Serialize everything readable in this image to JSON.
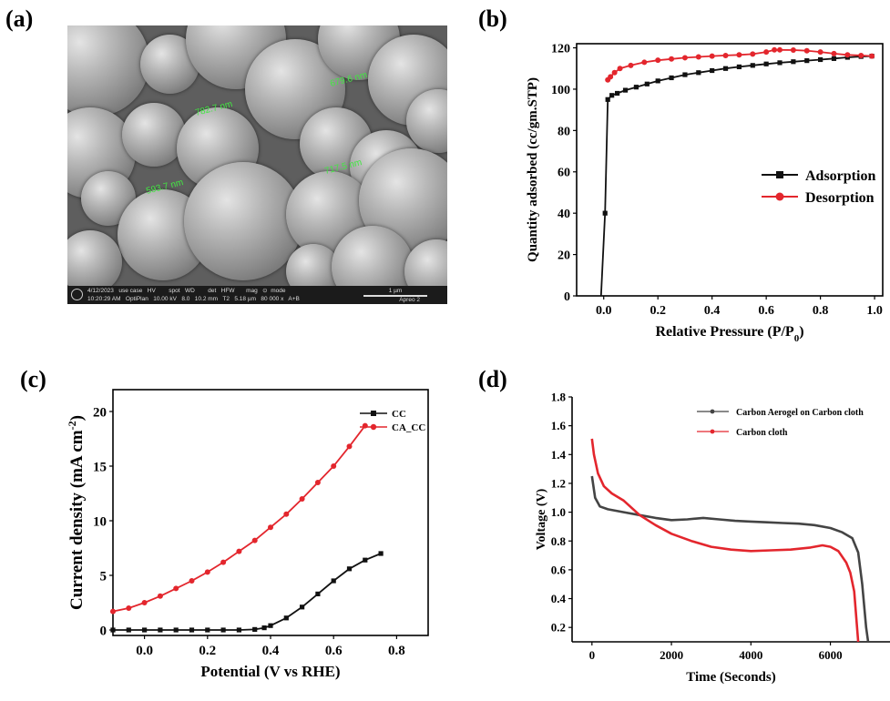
{
  "panels": {
    "a": "(a)",
    "b": "(b)",
    "c": "(c)",
    "d": "(d)"
  },
  "sem": {
    "measurements": [
      "782.7 nm",
      "679.6 nm",
      "593.7 nm",
      "717.5 nm"
    ],
    "databar": {
      "row1": "4/12/2023   use case   HV        spot   WD        det   HFW       mag   ⊙  mode",
      "row2": "10:20:29 AM   OptiPlan   10.00 kV   8.0   10.2 mm   T2   5.18 µm   80 000 x   A+B",
      "scale": "1 µm",
      "brand": "Apreo 2"
    }
  },
  "chart_data": [
    {
      "panel": "b",
      "type": "line",
      "xlabel": "Relative Pressure (P/P",
      "xlabel_sub": "0",
      "xlabel_end": ")",
      "ylabel": "Quantity adsorbed (cc/gm.STP)",
      "xlim": [
        -0.1,
        1.03
      ],
      "ylim": [
        0,
        122
      ],
      "xticks": [
        "0.0",
        "0.2",
        "0.4",
        "0.6",
        "0.8",
        "1.0"
      ],
      "yticks": [
        "0",
        "20",
        "40",
        "60",
        "80",
        "100",
        "120"
      ],
      "legend_position": "right-middle",
      "series": [
        {
          "name": "Adsorption",
          "color": "#111111",
          "marker": "square",
          "x": [
            -0.01,
            0.005,
            0.015,
            0.03,
            0.05,
            0.08,
            0.12,
            0.16,
            0.2,
            0.25,
            0.3,
            0.35,
            0.4,
            0.45,
            0.5,
            0.55,
            0.6,
            0.65,
            0.7,
            0.75,
            0.8,
            0.85,
            0.9,
            0.95,
            0.99
          ],
          "y": [
            0,
            40,
            95,
            97,
            98,
            99.5,
            101,
            102.5,
            104,
            105.5,
            107,
            108,
            109,
            110,
            110.8,
            111.5,
            112.2,
            112.8,
            113.3,
            113.8,
            114.3,
            114.8,
            115.4,
            115.8,
            116
          ]
        },
        {
          "name": "Desorption",
          "color": "#e3262d",
          "marker": "circle",
          "x": [
            0.99,
            0.95,
            0.9,
            0.85,
            0.8,
            0.75,
            0.7,
            0.65,
            0.63,
            0.6,
            0.55,
            0.5,
            0.45,
            0.4,
            0.35,
            0.3,
            0.25,
            0.2,
            0.15,
            0.1,
            0.06,
            0.04,
            0.025,
            0.015
          ],
          "y": [
            116,
            116.3,
            116.6,
            117.2,
            118,
            118.6,
            118.9,
            119,
            119,
            118,
            117,
            116.6,
            116.3,
            116,
            115.6,
            115.2,
            114.6,
            114,
            113,
            111.5,
            110,
            108,
            106,
            104.5
          ]
        }
      ]
    },
    {
      "panel": "c",
      "type": "line",
      "xlabel": "Potential (V vs RHE)",
      "ylabel": "Current density (mA cm",
      "ylabel_sup": "-2",
      "ylabel_end": ")",
      "xlim": [
        -0.1,
        0.9
      ],
      "ylim": [
        -0.5,
        22
      ],
      "xticks": [
        "0.0",
        "0.2",
        "0.4",
        "0.6",
        "0.8"
      ],
      "yticks": [
        "0",
        "5",
        "10",
        "15",
        "20"
      ],
      "legend_position": "top-right",
      "series": [
        {
          "name": "CC",
          "color": "#111111",
          "marker": "square",
          "x": [
            -0.1,
            -0.05,
            0.0,
            0.05,
            0.1,
            0.15,
            0.2,
            0.25,
            0.3,
            0.35,
            0.38,
            0.4,
            0.45,
            0.5,
            0.55,
            0.6,
            0.65,
            0.7,
            0.75
          ],
          "y": [
            0,
            0,
            0,
            0,
            0,
            0,
            0,
            0,
            0,
            0.05,
            0.2,
            0.4,
            1.1,
            2.1,
            3.3,
            4.5,
            5.6,
            6.4,
            7.0
          ]
        },
        {
          "name": "CA_CC",
          "color": "#e3262d",
          "marker": "circle",
          "x": [
            -0.1,
            -0.05,
            0.0,
            0.05,
            0.1,
            0.15,
            0.2,
            0.25,
            0.3,
            0.35,
            0.4,
            0.45,
            0.5,
            0.55,
            0.6,
            0.65,
            0.7
          ],
          "y": [
            1.7,
            2.0,
            2.5,
            3.1,
            3.8,
            4.5,
            5.3,
            6.2,
            7.2,
            8.2,
            9.4,
            10.6,
            12.0,
            13.5,
            15.0,
            16.8,
            18.7
          ]
        }
      ]
    },
    {
      "panel": "d",
      "type": "line",
      "xlabel": "Time (Seconds)",
      "ylabel": "Voltage (V)",
      "xlim": [
        -500,
        7500
      ],
      "ylim": [
        0.1,
        1.8
      ],
      "xticks": [
        "0",
        "2000",
        "4000",
        "6000"
      ],
      "yticks": [
        "0.2",
        "0.4",
        "0.6",
        "0.8",
        "1.0",
        "1.2",
        "1.4",
        "1.6",
        "1.8"
      ],
      "legend_position": "top-right",
      "series": [
        {
          "name": "Carbon Aerogel on Carbon cloth",
          "color": "#444444",
          "x": [
            0,
            80,
            200,
            400,
            800,
            1200,
            1600,
            2000,
            2400,
            2800,
            3200,
            3600,
            4000,
            4400,
            4800,
            5200,
            5600,
            6000,
            6300,
            6550,
            6700,
            6800,
            6900,
            6950
          ],
          "y": [
            1.25,
            1.1,
            1.04,
            1.02,
            1.0,
            0.98,
            0.96,
            0.945,
            0.95,
            0.96,
            0.95,
            0.94,
            0.935,
            0.93,
            0.925,
            0.92,
            0.91,
            0.89,
            0.86,
            0.82,
            0.72,
            0.5,
            0.2,
            0.08
          ]
        },
        {
          "name": "Carbon cloth",
          "color": "#e3262d",
          "x": [
            0,
            50,
            150,
            300,
            500,
            800,
            1200,
            1600,
            2000,
            2500,
            3000,
            3500,
            4000,
            4500,
            5000,
            5500,
            5800,
            6000,
            6200,
            6400,
            6500,
            6600,
            6700
          ],
          "y": [
            1.51,
            1.4,
            1.27,
            1.18,
            1.13,
            1.08,
            0.98,
            0.91,
            0.85,
            0.8,
            0.76,
            0.74,
            0.73,
            0.735,
            0.74,
            0.755,
            0.77,
            0.76,
            0.73,
            0.65,
            0.58,
            0.45,
            0.08
          ]
        }
      ]
    }
  ]
}
